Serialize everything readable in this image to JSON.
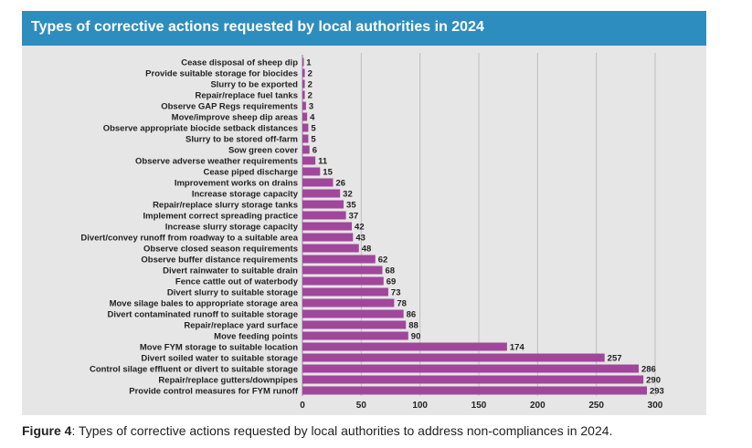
{
  "title": "Types of corrective actions requested by local authorities in 2024",
  "caption": {
    "figure_label": "Figure 4",
    "text": ":  Types of corrective actions requested by local authorities to address non-compliances in 2024."
  },
  "colors": {
    "title_bar": "#2e8dbf",
    "bar": "#a0479b",
    "plot_background": "#e6e6e6",
    "grid": "#bdbdbd"
  },
  "chart_data": {
    "type": "bar",
    "orientation": "horizontal",
    "title": "Types of corrective actions requested by local authorities in 2024",
    "xlabel": "",
    "ylabel": "",
    "xlim": [
      0,
      300
    ],
    "xticks": [
      0,
      50,
      100,
      150,
      200,
      250,
      300
    ],
    "grid": true,
    "categories": [
      "Cease disposal of sheep dip",
      "Provide suitable storage for biocides",
      "Slurry to be exported",
      "Repair/replace fuel tanks",
      "Observe GAP Regs requirements",
      "Move/improve sheep dip areas",
      "Observe appropriate biocide setback distances",
      "Slurry to be stored off-farm",
      "Sow green cover",
      "Observe adverse weather requirements",
      "Cease piped discharge",
      "Improvement works on drains",
      "Increase storage capacity",
      "Repair/replace slurry storage tanks",
      "Implement correct spreading practice",
      "Increase slurry storage capacity",
      "Divert/convey runoff from roadway to a suitable area",
      "Observe closed season requirements",
      "Observe buffer distance requirements",
      "Divert rainwater to suitable drain",
      "Fence cattle out of waterbody",
      "Divert slurry to suitable storage",
      "Move silage bales to appropriate storage area",
      "Divert contaminated runoff to suitable storage",
      "Repair/replace yard surface",
      "Move feeding points",
      "Move FYM storage to suitable location",
      "Divert soiled water to suitable storage",
      "Control silage effluent or divert to suitable storage",
      "Repair/replace gutters/downpipes",
      "Provide control measures for FYM runoff"
    ],
    "values": [
      1,
      2,
      2,
      2,
      3,
      4,
      5,
      5,
      6,
      11,
      15,
      26,
      32,
      35,
      37,
      42,
      43,
      48,
      62,
      68,
      69,
      73,
      78,
      86,
      88,
      90,
      174,
      257,
      286,
      290,
      293
    ]
  }
}
